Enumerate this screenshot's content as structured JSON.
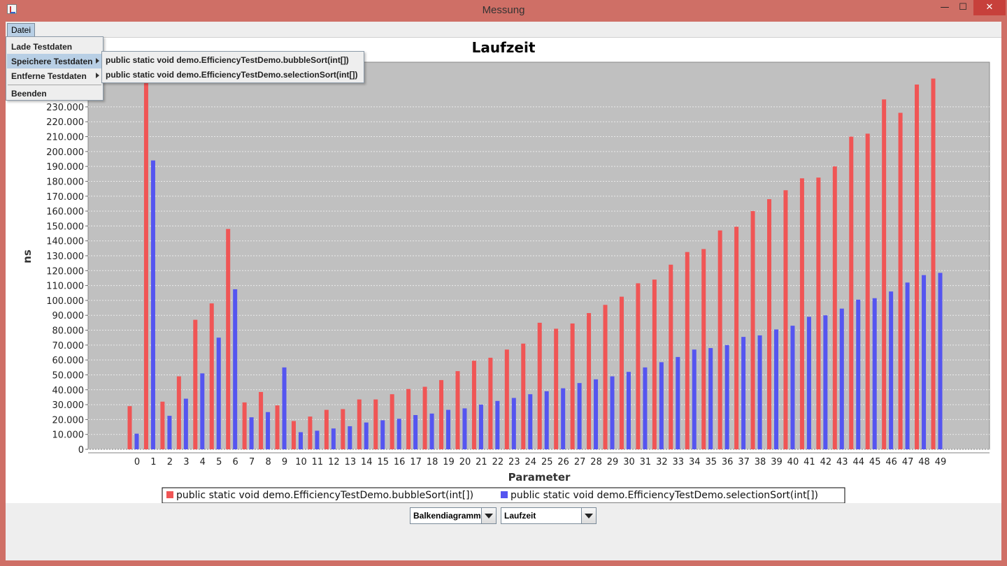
{
  "window": {
    "title": "Messung",
    "min_symbol": "—",
    "max_symbol": "☐",
    "close_symbol": "✕"
  },
  "menubar": {
    "items": [
      {
        "label": "Datei"
      }
    ]
  },
  "file_menu": {
    "items": [
      {
        "label": "Lade Testdaten"
      },
      {
        "label": "Speichere Testdaten"
      },
      {
        "label": "Entferne Testdaten"
      },
      {
        "label": "Beenden"
      }
    ]
  },
  "save_submenu": {
    "items": [
      {
        "label": "public static void demo.EfficiencyTestDemo.bubbleSort(int[])"
      },
      {
        "label": "public static void demo.EfficiencyTestDemo.selectionSort(int[])"
      }
    ]
  },
  "controls": {
    "chart_type": "Balkendiagramm",
    "metric": "Laufzeit"
  },
  "colors": {
    "series1": "#f05555",
    "series2": "#5555f0",
    "plot_bg": "#c0c0c0",
    "titlebar": "#cf6f66"
  },
  "chart_data": {
    "type": "bar",
    "title": "Laufzeit",
    "xlabel": "Parameter",
    "ylabel": "ns",
    "ylim": [
      0,
      260000
    ],
    "yticks": [
      0,
      10000,
      20000,
      30000,
      40000,
      50000,
      60000,
      70000,
      80000,
      90000,
      100000,
      110000,
      120000,
      130000,
      140000,
      150000,
      160000,
      170000,
      180000,
      190000,
      200000,
      210000,
      220000,
      230000
    ],
    "ytick_labels": [
      "0",
      "10.000",
      "20.000",
      "30.000",
      "40.000",
      "50.000",
      "60.000",
      "70.000",
      "80.000",
      "90.000",
      "100.000",
      "110.000",
      "120.000",
      "130.000",
      "140.000",
      "150.000",
      "160.000",
      "170.000",
      "180.000",
      "190.000",
      "200.000",
      "210.000",
      "220.000",
      "230.000"
    ],
    "categories": [
      "0",
      "1",
      "2",
      "3",
      "4",
      "5",
      "6",
      "7",
      "8",
      "9",
      "10",
      "11",
      "12",
      "13",
      "14",
      "15",
      "16",
      "17",
      "18",
      "19",
      "20",
      "21",
      "22",
      "23",
      "24",
      "25",
      "26",
      "27",
      "28",
      "29",
      "30",
      "31",
      "32",
      "33",
      "34",
      "35",
      "36",
      "37",
      "38",
      "39",
      "40",
      "41",
      "42",
      "43",
      "44",
      "45",
      "46",
      "47",
      "48",
      "49"
    ],
    "grid": true,
    "legend_position": "bottom",
    "series": [
      {
        "name": "public static void demo.EfficiencyTestDemo.bubbleSort(int[])",
        "values": [
          29000,
          246000,
          32000,
          49000,
          87000,
          98000,
          148000,
          31500,
          38500,
          29500,
          19000,
          22000,
          26500,
          27000,
          33500,
          33500,
          37000,
          40500,
          42000,
          46500,
          52500,
          59500,
          61500,
          67000,
          71000,
          85000,
          81000,
          84500,
          91500,
          97000,
          102500,
          111500,
          114000,
          124000,
          132500,
          134500,
          147000,
          149500,
          160000,
          168000,
          174000,
          182000,
          182500,
          190000,
          210000,
          212000,
          235000,
          226000,
          245000,
          249000
        ]
      },
      {
        "name": "public static void demo.EfficiencyTestDemo.selectionSort(int[])",
        "values": [
          10500,
          194000,
          22500,
          34000,
          51000,
          75000,
          107500,
          21500,
          25000,
          55000,
          11500,
          12500,
          14000,
          15500,
          18000,
          19500,
          20500,
          23000,
          24000,
          26500,
          27500,
          30000,
          32500,
          34500,
          37000,
          39000,
          41000,
          44500,
          47000,
          49000,
          52000,
          55000,
          58500,
          62000,
          67000,
          68000,
          70000,
          75500,
          76500,
          80500,
          83000,
          89000,
          90000,
          94500,
          100500,
          101500,
          106000,
          112000,
          117000,
          118500
        ]
      }
    ]
  }
}
